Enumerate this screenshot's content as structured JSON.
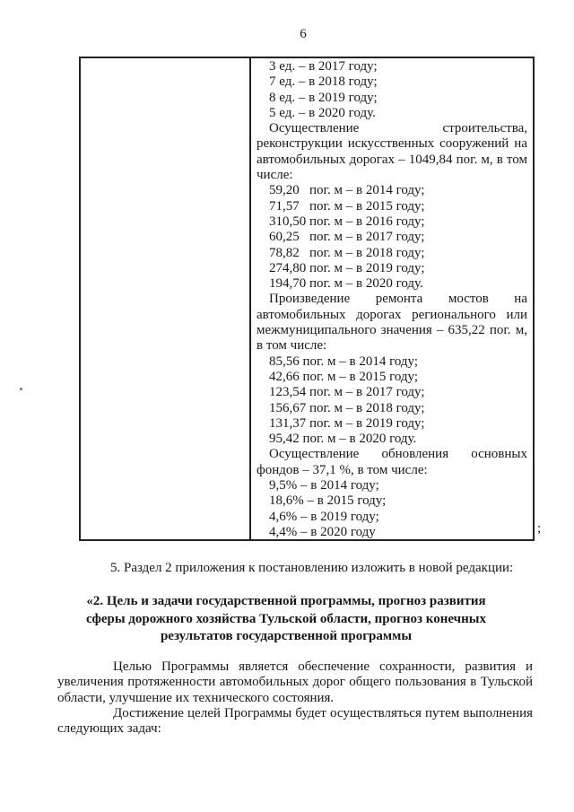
{
  "page": {
    "number": "6"
  },
  "table": {
    "right_cell": {
      "blocks": [
        {
          "type": "list",
          "lines": [
            "3 ед. – в 2017 году;",
            "7 ед. – в 2018 году;",
            "8 ед. – в 2019 году;",
            "5 ед. – в 2020 году."
          ]
        },
        {
          "type": "para",
          "text": "Осуществление строительства, реконструкции искусственных сооружений на автомобильных дорогах – 1049,84 пог. м, в том числе:"
        },
        {
          "type": "list",
          "lines": [
            "59,20   пог. м – в 2014 году;",
            "71,57   пог. м – в 2015 году;",
            "310,50 пог. м – в 2016 году;",
            "60,25   пог. м – в 2017 году;",
            "78,82   пог. м – в 2018 году;",
            "274,80 пог. м – в 2019 году;",
            "194,70 пог. м – в 2020 году."
          ]
        },
        {
          "type": "para",
          "text": "Произведение ремонта мостов на автомобильных дорогах регионального или межмуниципального значения – 635,22 пог. м, в том числе:"
        },
        {
          "type": "list",
          "lines": [
            "85,56 пог. м – в 2014 году;",
            "42,66 пог. м – в 2015 году;",
            "123,54 пог. м – в 2017 году;",
            "156,67 пог. м – в 2018 году;",
            "131,37 пог. м – в 2019 году;",
            "95,42 пог. м – в 2020 году."
          ]
        },
        {
          "type": "para",
          "text": "Осуществление обновления основных фондов – 37,1 %, в том числе:"
        },
        {
          "type": "list",
          "lines": [
            "9,5% – в 2014 году;",
            "18,6% – в 2015 году;",
            "4,6% – в 2019 году;",
            "4,4% – в 2020 году"
          ]
        }
      ]
    },
    "after_mark": ";"
  },
  "body": {
    "amendment_line": "5. Раздел 2 приложения к постановлению изложить в новой редакции:",
    "section_heading_lines": [
      "«2. Цель и задачи государственной программы, прогноз развития",
      "сферы дорожного хозяйства Тульской области, прогноз конечных",
      "результатов государственной программы"
    ],
    "goal_paragraph": "Целью Программы является обеспечение сохранности, развития и увеличения протяженности автомобильных дорог общего пользования в Тульской области, улучшение их технического состояния.",
    "tasks_paragraph": "Достижение целей Программы будет осуществляться путем выполнения следующих задач:"
  }
}
